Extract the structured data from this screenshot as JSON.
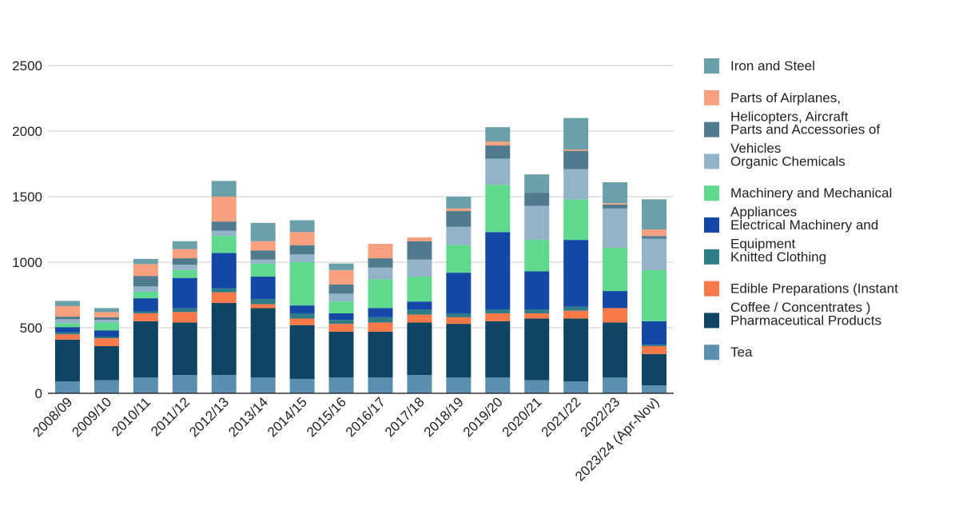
{
  "chart_data": {
    "type": "bar",
    "stacked": true,
    "title": "",
    "xlabel": "",
    "ylabel": "",
    "ylim": [
      0,
      2500
    ],
    "yticks": [
      0,
      500,
      1000,
      1500,
      2000,
      2500
    ],
    "grid": true,
    "legend_position": "right",
    "categories": [
      "2008/09",
      "2009/10",
      "2010/11",
      "2011/12",
      "2012/13",
      "2013/14",
      "2014/15",
      "2015/16",
      "2016/17",
      "2017/18",
      "2018/19",
      "2019/20",
      "2020/21",
      "2021/22",
      "2022/23",
      "2023/24 (Apr-Nov)"
    ],
    "series": [
      {
        "name": "Tea",
        "color": "#5b8fb0",
        "values": [
          90,
          100,
          120,
          140,
          140,
          120,
          110,
          120,
          120,
          140,
          120,
          120,
          100,
          90,
          120,
          60
        ]
      },
      {
        "name": "Pharmaceutical Products",
        "color": "#0f4562",
        "values": [
          320,
          260,
          430,
          400,
          550,
          530,
          410,
          350,
          350,
          400,
          410,
          430,
          470,
          480,
          420,
          240
        ]
      },
      {
        "name": "Edible Preparations (Instant Coffee / Concentrates )",
        "color": "#f97a48",
        "values": [
          40,
          60,
          60,
          80,
          80,
          30,
          50,
          60,
          70,
          60,
          50,
          60,
          40,
          60,
          110,
          60
        ]
      },
      {
        "name": "Knitted Clothing",
        "color": "#2d7c88",
        "values": [
          15,
          10,
          15,
          30,
          30,
          40,
          40,
          30,
          40,
          40,
          30,
          30,
          30,
          30,
          0,
          10
        ]
      },
      {
        "name": "Electrical Machinery and Equipment",
        "color": "#1548a6",
        "values": [
          40,
          50,
          100,
          230,
          270,
          170,
          60,
          50,
          70,
          60,
          310,
          590,
          290,
          510,
          130,
          180
        ]
      },
      {
        "name": "Machinery and Mechanical Appliances",
        "color": "#5ed98d",
        "values": [
          30,
          60,
          50,
          60,
          130,
          100,
          330,
          90,
          220,
          190,
          210,
          360,
          240,
          310,
          330,
          390
        ]
      },
      {
        "name": "Organic Chemicals",
        "color": "#93b3c8",
        "values": [
          30,
          20,
          40,
          40,
          40,
          30,
          60,
          60,
          90,
          130,
          140,
          200,
          260,
          230,
          300,
          240
        ]
      },
      {
        "name": "Parts and Accessories of Vehicles",
        "color": "#507a8e",
        "values": [
          20,
          20,
          80,
          50,
          70,
          70,
          70,
          70,
          70,
          140,
          120,
          100,
          100,
          140,
          30,
          20
        ]
      },
      {
        "name": "Parts of Airplanes, Helicopters, Aircraft",
        "color": "#f9a07e",
        "values": [
          80,
          40,
          90,
          70,
          190,
          70,
          100,
          110,
          110,
          30,
          20,
          30,
          0,
          10,
          10,
          50
        ]
      },
      {
        "name": "Iron and Steel",
        "color": "#6aa0aa",
        "values": [
          40,
          30,
          40,
          60,
          120,
          140,
          90,
          50,
          0,
          0,
          90,
          110,
          140,
          240,
          160,
          230
        ]
      }
    ]
  }
}
